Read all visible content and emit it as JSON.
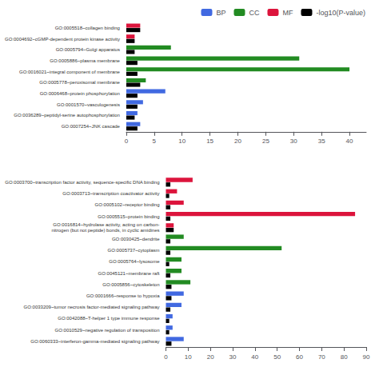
{
  "chart_data": [
    {
      "type": "bar",
      "orientation": "horizontal",
      "categories": [
        "GO:0005518~collagen binding",
        "GO:0004692~cGMP-dependent protein kinase activity",
        "GO:0005794~Golgi apparatus",
        "GO:0005886~plasma membrane",
        "GO:0016021~integral component of membrane",
        "GO:0005778~peroxisomal membrane",
        "GO:0006468~protein phosphorylation",
        "GO:0001570~vasculogenesis",
        "GO:0036289~peptidyl-serine autophosphorylation",
        "GO:0007254~JNK cascade"
      ],
      "series": [
        {
          "name": "BP",
          "color": "#4169E1",
          "values": [
            null,
            null,
            null,
            null,
            null,
            null,
            7.0,
            3.0,
            2.0,
            2.5
          ]
        },
        {
          "name": "CC",
          "color": "#228B22",
          "values": [
            null,
            null,
            8.0,
            31.0,
            40.0,
            3.5,
            null,
            null,
            null,
            null
          ]
        },
        {
          "name": "MF",
          "color": "#DC143C",
          "values": [
            2.5,
            1.5,
            null,
            null,
            null,
            null,
            null,
            null,
            null,
            null
          ]
        },
        {
          "name": "-log10(P-value)",
          "color": "#000000",
          "values": [
            2.5,
            1.5,
            1.5,
            2.0,
            2.0,
            2.5,
            2.0,
            2.0,
            1.5,
            2.0
          ]
        }
      ],
      "xlim": [
        0,
        43
      ],
      "xticks": [
        0,
        5,
        10,
        15,
        20,
        25,
        30,
        35,
        40
      ],
      "grid": false,
      "legend": "upper right"
    },
    {
      "type": "bar",
      "orientation": "horizontal",
      "categories": [
        "GO:0003700~transcription factor activity, sequence-specific DNA binding",
        "GO:0003713~transcription coactivator activity",
        "GO:0005102~receptor binding",
        "GO:0005515~protein binding",
        "GO:0016814~hydrolase activity, acting on carbon-\nnitrogen (but not peptide) bonds, in cyclic amidines",
        "GO:0030425~dendrite",
        "GO:0005737~cytoplasm",
        "GO:0005764~lysosome",
        "GO:0045121~membrane raft",
        "GO:0005856~cytoskeleton",
        "GO:0001666~response to hypoxia",
        "GO:0033209~tumor necrosis factor-mediated signaling pathway",
        "GO:0042088~T-helper 1 type immune response",
        "GO:0010529~negative regulation of transposition",
        "GO:0060333~interferon-gamma-mediated signaling pathway"
      ],
      "series": [
        {
          "name": "BP",
          "color": "#4169E1",
          "values": [
            null,
            null,
            null,
            null,
            null,
            null,
            null,
            null,
            null,
            null,
            8.0,
            7.0,
            3.0,
            3.0,
            8.0
          ]
        },
        {
          "name": "CC",
          "color": "#228B22",
          "values": [
            null,
            null,
            null,
            null,
            null,
            8.0,
            52.0,
            7.0,
            7.0,
            11.0,
            null,
            null,
            null,
            null,
            null
          ]
        },
        {
          "name": "MF",
          "color": "#DC143C",
          "values": [
            12.0,
            5.0,
            8.0,
            85.0,
            3.5,
            null,
            null,
            null,
            null,
            null,
            null,
            null,
            null,
            null,
            null
          ]
        },
        {
          "name": "-log10(P-value)",
          "color": "#000000",
          "values": [
            2.0,
            1.5,
            2.0,
            2.0,
            3.5,
            2.0,
            2.0,
            1.5,
            2.0,
            2.5,
            2.5,
            2.0,
            1.5,
            1.5,
            2.5
          ]
        }
      ],
      "xlim": [
        0,
        90
      ],
      "xticks": [
        0,
        10,
        20,
        30,
        40,
        50,
        60,
        70,
        80,
        90
      ],
      "grid": false
    }
  ]
}
